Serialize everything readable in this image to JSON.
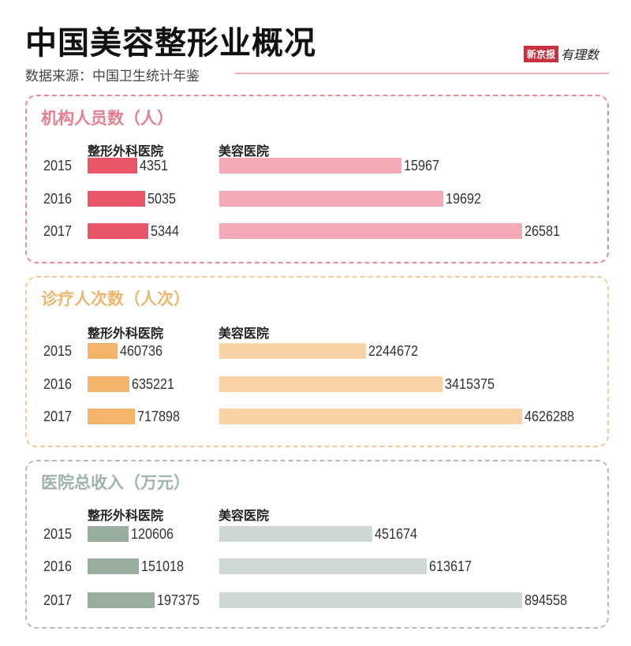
{
  "header": {
    "title": "中国美容整形业概况",
    "source": "数据来源：中国卫生统计年鉴",
    "logo_text": "新京报",
    "logo_script": "有理数"
  },
  "chart_data": [
    {
      "type": "bar",
      "orientation": "horizontal",
      "title": "机构人员数（人）",
      "categories": [
        "2015",
        "2016",
        "2017"
      ],
      "series": [
        {
          "name": "整形外科医院",
          "values": [
            4351,
            5035,
            5344
          ]
        },
        {
          "name": "美容医院",
          "values": [
            15967,
            19692,
            26581
          ]
        }
      ],
      "colors": {
        "border": "#e98a99",
        "title": "#e77d8e",
        "surgery": "#e8566a",
        "beauty": "#f2aab7"
      }
    },
    {
      "type": "bar",
      "orientation": "horizontal",
      "title": "诊疗人次数（人次）",
      "categories": [
        "2015",
        "2016",
        "2017"
      ],
      "series": [
        {
          "name": "整形外科医院",
          "values": [
            460736,
            635221,
            717898
          ]
        },
        {
          "name": "美容医院",
          "values": [
            2244672,
            3415375,
            4626288
          ]
        }
      ],
      "colors": {
        "border": "#f3c99a",
        "title": "#f0b66e",
        "surgery": "#f5b46a",
        "beauty": "#f9d3a5"
      }
    },
    {
      "type": "bar",
      "orientation": "horizontal",
      "title": "医院总收入（万元）",
      "categories": [
        "2015",
        "2016",
        "2017"
      ],
      "series": [
        {
          "name": "整形外科医院",
          "values": [
            120606,
            151018,
            197375
          ]
        },
        {
          "name": "美容医院",
          "values": [
            451674,
            613617,
            894558
          ]
        }
      ],
      "colors": {
        "border": "#b5bdb8",
        "title": "#9fb3a8",
        "surgery": "#9aae9f",
        "beauty": "#ccd8d1"
      }
    }
  ]
}
